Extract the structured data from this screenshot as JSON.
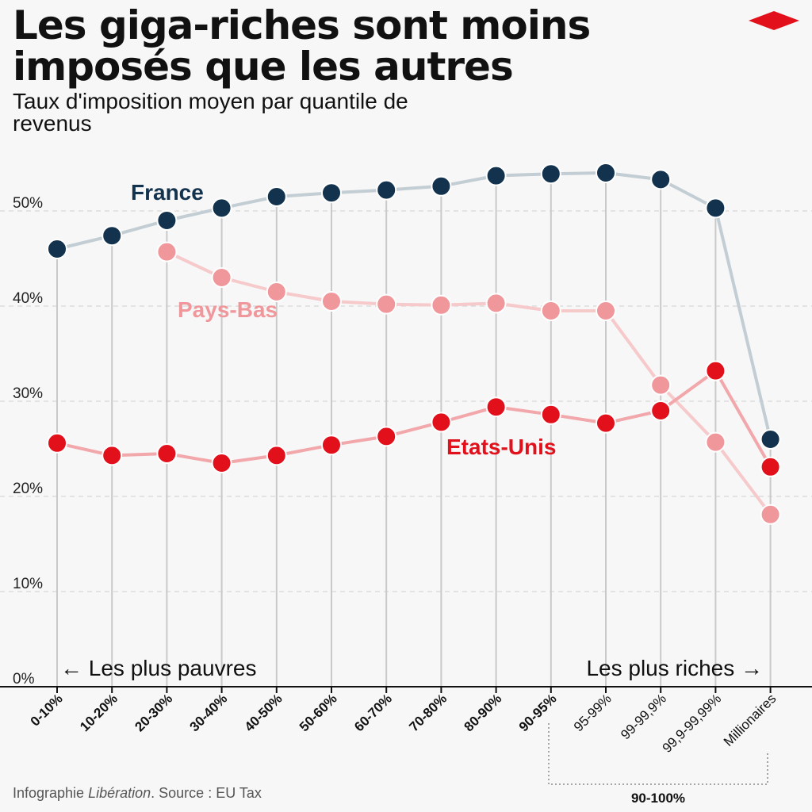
{
  "title": "Les giga-riches sont moins imposés que les autres",
  "subtitle": "Taux d'imposition moyen par quantile de revenus",
  "source_prefix": "Infographie",
  "source_outlet": "Libération",
  "source_suffix": ". Source : EU Tax",
  "colors": {
    "france": "#12324d",
    "france_line": "#c3cdd4",
    "paysbas": "#f0979c",
    "paysbas_line": "#f6c9cb",
    "etatsunis": "#e2101b",
    "etatsunis_line": "#f2a7ab",
    "logo": "#e2101b"
  },
  "chart_data": {
    "type": "line",
    "categories": [
      "0-10%",
      "10-20%",
      "20-30%",
      "30-40%",
      "40-50%",
      "50-60%",
      "60-70%",
      "70-80%",
      "80-90%",
      "90-95%",
      "95-99%",
      "99-99,9%",
      "99,9-99,99%",
      "Millionaires"
    ],
    "series": [
      {
        "name": "France",
        "key": "france",
        "values": [
          46,
          47.4,
          49,
          50.3,
          51.5,
          51.9,
          52.2,
          52.6,
          53.7,
          53.9,
          54,
          53.3,
          50.3,
          26
        ]
      },
      {
        "name": "Pays-Bas",
        "key": "paysbas",
        "values": [
          null,
          null,
          45.7,
          43,
          41.5,
          40.5,
          40.2,
          40.1,
          40.3,
          39.5,
          39.5,
          31.7,
          25.7,
          18.1
        ]
      },
      {
        "name": "Etats-Unis",
        "key": "etatsunis",
        "values": [
          25.6,
          24.3,
          24.5,
          23.5,
          24.3,
          25.4,
          26.3,
          27.8,
          29.4,
          28.6,
          27.7,
          29,
          33.2,
          23.1
        ]
      }
    ],
    "y_ticks": [
      "0%",
      "10%",
      "20%",
      "30%",
      "40%",
      "50%"
    ],
    "ylim": [
      0,
      55
    ],
    "grid": true,
    "bracket_label": "90-100%",
    "left_annotation": "← Les plus pauvres",
    "right_annotation": "Les plus riches →"
  }
}
